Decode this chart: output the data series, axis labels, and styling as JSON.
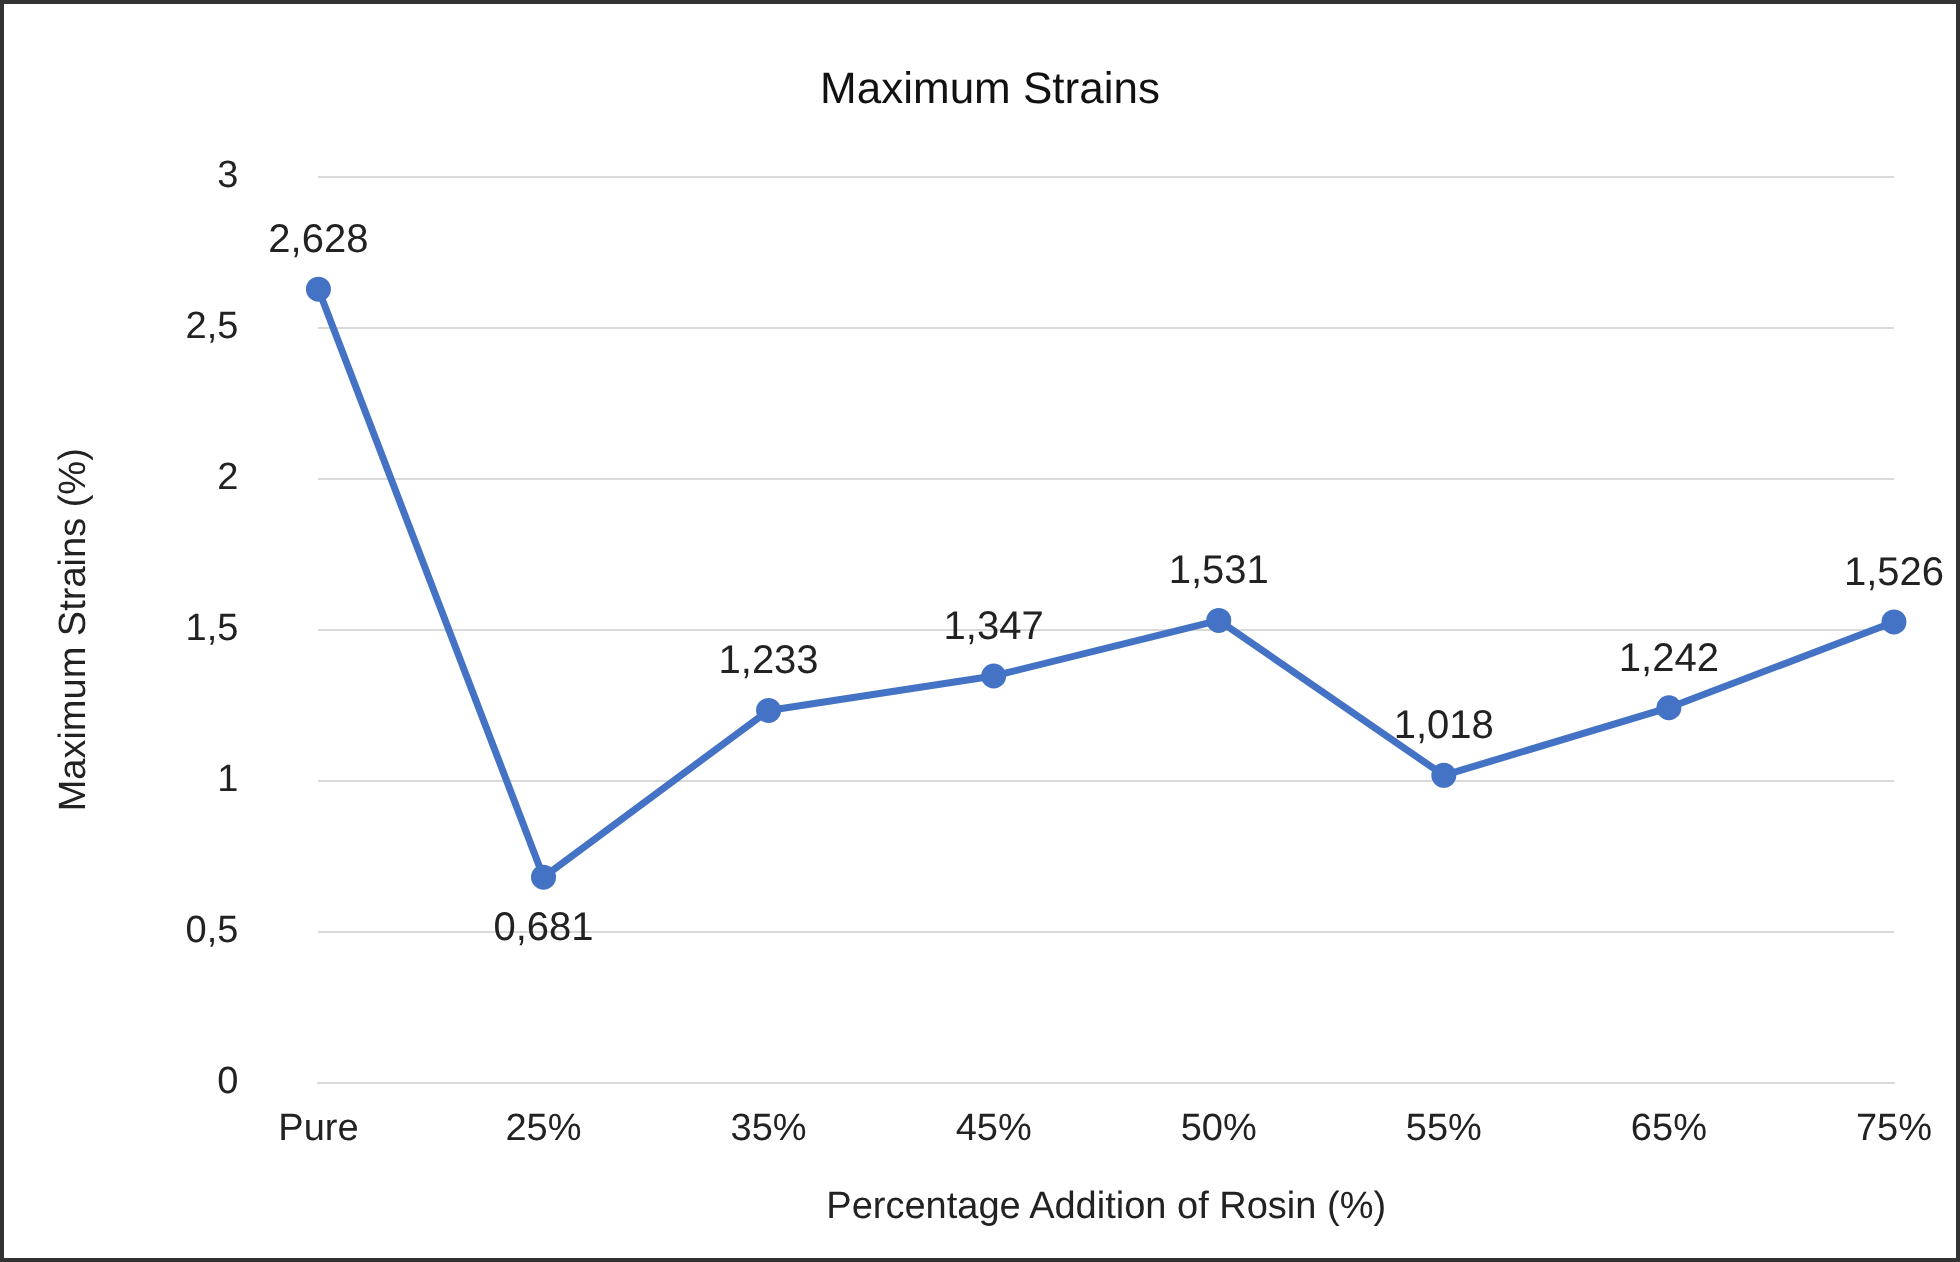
{
  "chart_data": {
    "type": "line",
    "title": "Maximum Strains",
    "xlabel": "Percentage Addition of Rosin (%)",
    "ylabel": "Maximum Strains (%)",
    "categories": [
      "Pure",
      "25%",
      "35%",
      "45%",
      "50%",
      "55%",
      "65%",
      "75%"
    ],
    "series": [
      {
        "color": "#4472c4",
        "values": [
          2.628,
          0.681,
          1.233,
          1.347,
          1.531,
          1.018,
          1.242,
          1.526
        ],
        "value_labels": [
          "2,628",
          "0,681",
          "1,233",
          "1,347",
          "1,531",
          "1,018",
          "1,242",
          "1,526"
        ]
      }
    ],
    "ylim": [
      0,
      3
    ],
    "yticks": [
      0,
      {
        "value": 0.5,
        "label": "0,5"
      },
      1,
      {
        "value": 1.5,
        "label": "1,5"
      },
      2,
      {
        "value": 2.5,
        "label": "2,5"
      },
      3
    ],
    "grid": "y",
    "marker": "circle",
    "line_style": "solid",
    "legend": false
  }
}
